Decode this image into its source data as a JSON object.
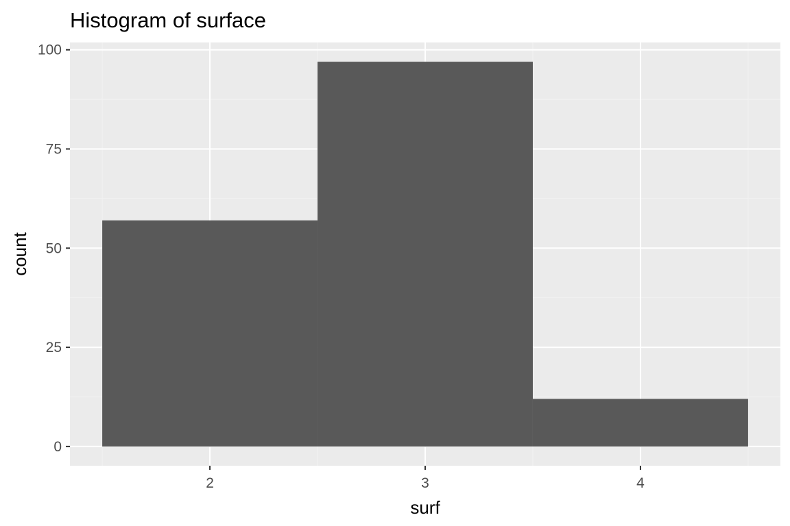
{
  "chart_data": {
    "type": "bar",
    "subtype": "histogram",
    "title": "Histogram of surface",
    "xlabel": "surf",
    "ylabel": "count",
    "bins": [
      {
        "x_start": 1.5,
        "x_end": 2.5,
        "count": 57
      },
      {
        "x_start": 2.5,
        "x_end": 3.5,
        "count": 97
      },
      {
        "x_start": 3.5,
        "x_end": 4.5,
        "count": 12
      }
    ],
    "x_ticks": [
      2,
      3,
      4
    ],
    "y_ticks": [
      0,
      25,
      50,
      75,
      100
    ],
    "x_tick_labels": [
      "2",
      "3",
      "4"
    ],
    "y_tick_labels": [
      "0",
      "25",
      "50",
      "75",
      "100"
    ],
    "xlim": [
      1.35,
      4.65
    ],
    "ylim": [
      -4.85,
      101.85
    ],
    "grid": true,
    "colors": {
      "bar_fill": "#595959",
      "panel_background": "#ebebeb",
      "grid_major": "#ffffff",
      "grid_minor": "#f2f2f2",
      "tick_label": "#4d4d4d",
      "tick_mark": "#333333"
    }
  }
}
